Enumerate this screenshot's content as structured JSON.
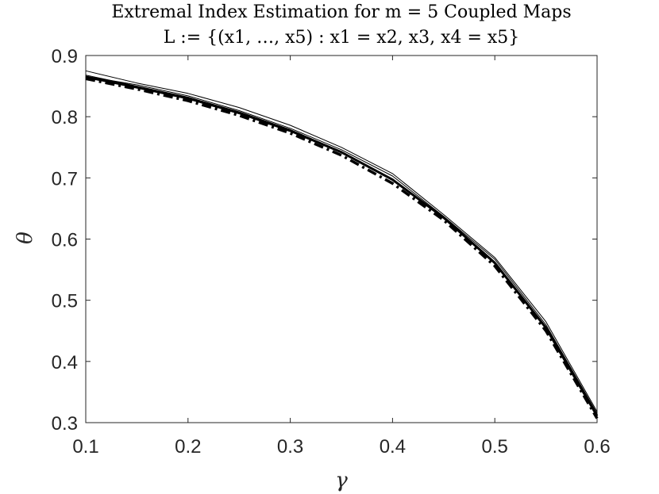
{
  "chart_data": {
    "type": "line",
    "title": "Extremal Index Estimation for m = 5 Coupled Maps",
    "subtitle": "L := {(x1, …, x5) : x1 = x2, x3, x4 = x5}",
    "xlabel": "γ",
    "ylabel": "θ",
    "xlim": [
      0.1,
      0.6
    ],
    "ylim": [
      0.3,
      0.9
    ],
    "xticks": [
      "0.1",
      "0.2",
      "0.3",
      "0.4",
      "0.5",
      "0.6"
    ],
    "yticks": [
      "0.3",
      "0.4",
      "0.5",
      "0.6",
      "0.7",
      "0.8",
      "0.9"
    ],
    "grid": false,
    "x": [
      0.1,
      0.15,
      0.2,
      0.25,
      0.3,
      0.35,
      0.4,
      0.45,
      0.5,
      0.55,
      0.6
    ],
    "series": [
      {
        "style": "thin-solid",
        "values": [
          0.875,
          0.855,
          0.838,
          0.815,
          0.786,
          0.75,
          0.707,
          0.64,
          0.57,
          0.465,
          0.318
        ]
      },
      {
        "style": "thin-solid",
        "values": [
          0.866,
          0.852,
          0.834,
          0.81,
          0.781,
          0.746,
          0.703,
          0.637,
          0.567,
          0.46,
          0.315
        ]
      },
      {
        "style": "thin-solid",
        "values": [
          0.868,
          0.85,
          0.832,
          0.808,
          0.779,
          0.743,
          0.698,
          0.636,
          0.563,
          0.457,
          0.313
        ]
      },
      {
        "style": "thick-solid",
        "values": [
          0.865,
          0.848,
          0.83,
          0.806,
          0.777,
          0.742,
          0.697,
          0.635,
          0.561,
          0.455,
          0.311
        ]
      },
      {
        "style": "thick-dashdot",
        "values": [
          0.862,
          0.845,
          0.826,
          0.802,
          0.773,
          0.737,
          0.691,
          0.631,
          0.556,
          0.45,
          0.307
        ]
      }
    ]
  }
}
